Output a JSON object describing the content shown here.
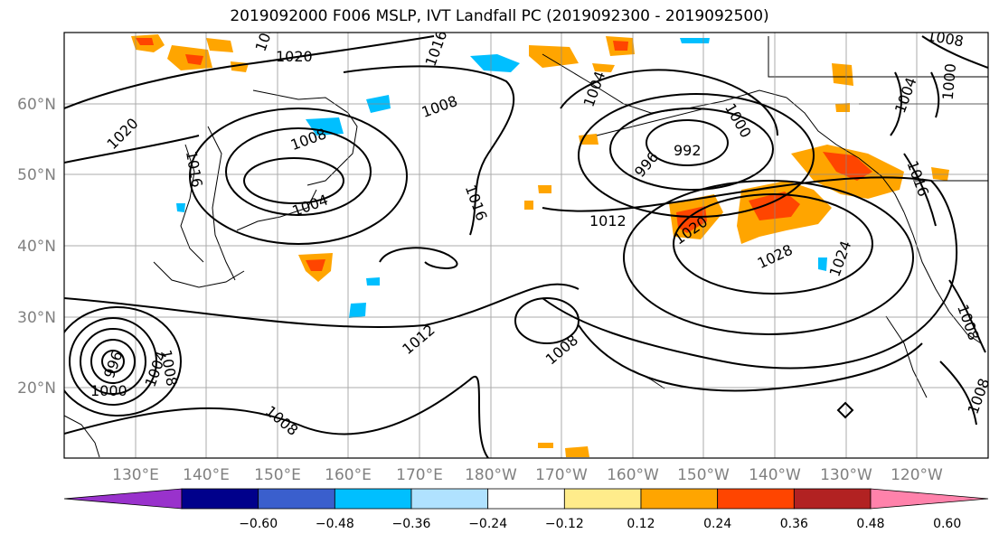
{
  "title": "2019092000 F006 MSLP, IVT Landfall PC (2019092300 - 2019092500)",
  "lat_labels": [
    "60°N",
    "50°N",
    "40°N",
    "30°N",
    "20°N"
  ],
  "lon_labels": [
    "130°E",
    "140°E",
    "150°E",
    "160°E",
    "170°E",
    "180°W",
    "170°W",
    "160°W",
    "150°W",
    "140°W",
    "130°W",
    "120°W"
  ],
  "contour_labels": [
    "1020",
    "1016",
    "1008",
    "1008",
    "1004",
    "1004",
    "1000",
    "1008",
    "1020",
    "1016",
    "1012",
    "1008",
    "1004",
    "1008",
    "1000",
    "996",
    "992",
    "1016",
    "1012",
    "1020",
    "1028",
    "1024",
    "1016",
    "1008",
    "1008",
    "1004",
    "1000",
    "996",
    "1008",
    "1008"
  ],
  "colorbar": {
    "ticks": [
      "−0.60",
      "−0.48",
      "−0.36",
      "−0.24",
      "−0.12",
      "0.12",
      "0.24",
      "0.36",
      "0.48",
      "0.60"
    ],
    "colors": [
      "#9932CC",
      "#00008B",
      "#3A5FCD",
      "#00BFFF",
      "#B0E2FF",
      "#FFFFFF",
      "#FFEC8B",
      "#FFA500",
      "#FF4500",
      "#B22222",
      "#FF82AB"
    ]
  }
}
